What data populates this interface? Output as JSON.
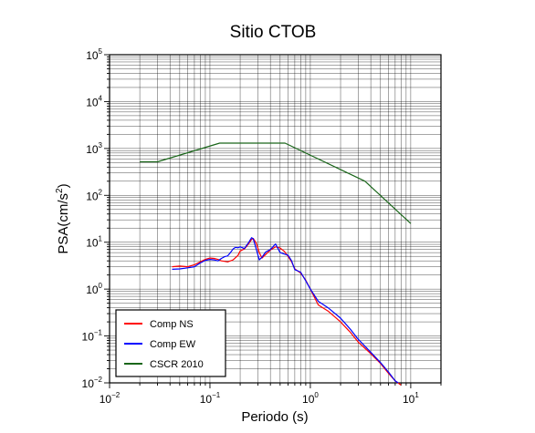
{
  "chart_data": {
    "type": "line",
    "title": "Sitio CTOB",
    "xlabel": "Periodo (s)",
    "ylabel_base": "PSA(cm/s",
    "ylabel_sup": "2",
    "ylabel_end": ")",
    "x_scale": "log",
    "y_scale": "log",
    "xlim": [
      0.01,
      20
    ],
    "ylim": [
      0.01,
      100000
    ],
    "grid": true,
    "legend_position": "bottom-left",
    "x_ticks": [
      {
        "base": "10",
        "exp": "−2"
      },
      {
        "base": "10",
        "exp": "−1"
      },
      {
        "base": "10",
        "exp": "0"
      },
      {
        "base": "10",
        "exp": "1"
      }
    ],
    "y_ticks": [
      {
        "base": "10",
        "exp": "−2"
      },
      {
        "base": "10",
        "exp": "−1"
      },
      {
        "base": "10",
        "exp": "0"
      },
      {
        "base": "10",
        "exp": "1"
      },
      {
        "base": "10",
        "exp": "2"
      },
      {
        "base": "10",
        "exp": "3"
      },
      {
        "base": "10",
        "exp": "4"
      },
      {
        "base": "10",
        "exp": "5"
      }
    ],
    "series": [
      {
        "name": "Comp NS",
        "color": "#ff0000",
        "x": [
          0.042,
          0.05,
          0.06,
          0.07,
          0.08,
          0.09,
          0.1,
          0.11,
          0.12,
          0.13,
          0.14,
          0.15,
          0.17,
          0.19,
          0.2,
          0.22,
          0.24,
          0.26,
          0.27,
          0.29,
          0.31,
          0.33,
          0.36,
          0.4,
          0.45,
          0.5,
          0.55,
          0.6,
          0.65,
          0.7,
          0.8,
          0.9,
          1.0,
          1.2,
          1.5,
          2.0,
          2.5,
          3.0,
          4.0,
          5.0,
          6.0,
          7.0,
          8.0
        ],
        "y": [
          3.0,
          3.1,
          3.0,
          3.3,
          3.8,
          4.3,
          4.6,
          4.5,
          4.3,
          4.0,
          3.9,
          3.8,
          4.2,
          5.2,
          6.5,
          7.2,
          9.0,
          11.5,
          12.0,
          9.5,
          6.0,
          4.6,
          5.5,
          6.8,
          8.0,
          7.5,
          6.4,
          5.0,
          3.8,
          2.7,
          2.2,
          1.55,
          1.0,
          0.46,
          0.34,
          0.2,
          0.12,
          0.074,
          0.042,
          0.026,
          0.016,
          0.011,
          0.009
        ]
      },
      {
        "name": "Comp EW",
        "color": "#0000ff",
        "x": [
          0.042,
          0.05,
          0.06,
          0.07,
          0.08,
          0.09,
          0.1,
          0.11,
          0.12,
          0.13,
          0.14,
          0.15,
          0.16,
          0.17,
          0.18,
          0.19,
          0.2,
          0.22,
          0.24,
          0.26,
          0.27,
          0.29,
          0.31,
          0.33,
          0.36,
          0.4,
          0.45,
          0.5,
          0.55,
          0.6,
          0.65,
          0.7,
          0.8,
          0.9,
          1.0,
          1.2,
          1.5,
          2.0,
          2.5,
          3.0,
          4.0,
          5.0,
          6.0,
          7.0,
          7.5
        ],
        "y": [
          2.65,
          2.7,
          2.85,
          3.0,
          3.6,
          4.1,
          4.3,
          4.2,
          4.0,
          4.5,
          4.9,
          5.1,
          6.0,
          7.2,
          7.8,
          7.6,
          8.0,
          7.3,
          9.5,
          12.5,
          11.8,
          7.0,
          4.2,
          4.8,
          6.2,
          7.0,
          9.2,
          6.0,
          5.6,
          5.3,
          4.0,
          2.6,
          2.3,
          1.5,
          1.0,
          0.55,
          0.4,
          0.24,
          0.14,
          0.085,
          0.045,
          0.027,
          0.017,
          0.011,
          0.01
        ]
      },
      {
        "name": "CSCR 2010",
        "color": "#1a661a",
        "x": [
          0.02,
          0.03,
          0.125,
          0.56,
          3.5,
          10
        ],
        "y": [
          520,
          520,
          1300,
          1300,
          200,
          25
        ]
      }
    ]
  }
}
